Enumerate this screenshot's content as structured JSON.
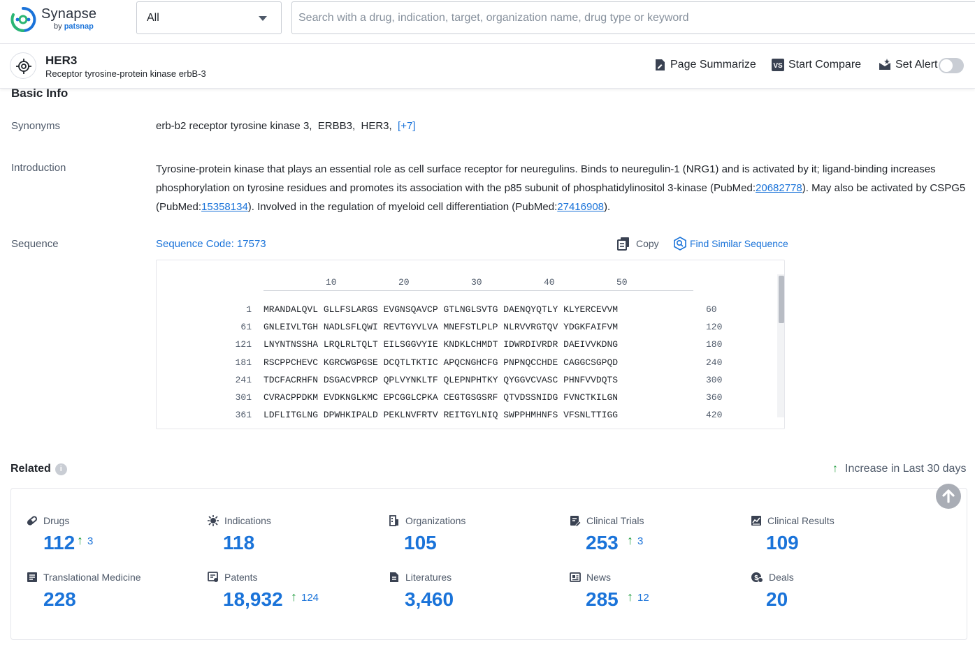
{
  "header": {
    "brand": "Synapse",
    "brand_by": "by",
    "brand_company": "patsnap",
    "search_scope": "All",
    "search_placeholder": "Search with a drug, indication, target, organization name, drug type or keyword"
  },
  "entity": {
    "name": "HER3",
    "description": "Receptor tyrosine-protein kinase erbB-3",
    "actions": {
      "summarize": "Page Summarize",
      "compare": "Start Compare",
      "alert": "Set Alert"
    },
    "alert_enabled": false
  },
  "basic_info": {
    "title": "Basic Info",
    "synonyms_label": "Synonyms",
    "synonyms": [
      "erb-b2 receptor tyrosine kinase 3,",
      "ERBB3,",
      "HER3,"
    ],
    "synonyms_more": "[+7]",
    "introduction_label": "Introduction",
    "introduction": {
      "part1": "Tyrosine-protein kinase that plays an essential role as cell surface receptor for neuregulins. Binds to neuregulin-1 (NRG1) and is activated by it; ligand-binding increases phosphorylation on tyrosine residues and promotes its association with the p85 subunit of phosphatidylinositol 3-kinase (PubMed:",
      "link1": "20682778",
      "part2": "). May also be activated by CSPG5 (PubMed:",
      "link2": "15358134",
      "part3": "). Involved in the regulation of myeloid cell differentiation (PubMed:",
      "link3": "27416908",
      "part4": ")."
    },
    "sequence_label": "Sequence",
    "sequence_code": "Sequence Code: 17573",
    "copy_label": "Copy",
    "find_similar_label": "Find Similar Sequence",
    "ruler_ticks": [
      "10",
      "20",
      "30",
      "40",
      "50"
    ],
    "sequence_lines": [
      {
        "start": "1",
        "residues": "MRANDALQVL GLLFSLARGS EVGNSQAVCP GTLNGLSVTG DAENQYQTLY KLYERCEVVM",
        "end": "60"
      },
      {
        "start": "61",
        "residues": "GNLEIVLTGH NADLSFLQWI REVTGYVLVA MNEFSTLPLP NLRVVRGTQV YDGKFAIFVM",
        "end": "120"
      },
      {
        "start": "121",
        "residues": "LNYNTNSSHA LRQLRLTQLT EILSGGVYIE KNDKLCHMDT IDWRDIVRDR DAEIVVKDNG",
        "end": "180"
      },
      {
        "start": "181",
        "residues": "RSCPPCHEVC KGRCWGPGSE DCQTLTKTIC APQCNGHCFG PNPNQCCHDE CAGGCSGPQD",
        "end": "240"
      },
      {
        "start": "241",
        "residues": "TDCFACRHFN DSGACVPRCP QPLVYNKLTF QLEPNPHTKY QYGGVCVASC PHNFVVDQTS",
        "end": "300"
      },
      {
        "start": "301",
        "residues": "CVRACPPDKM EVDKNGLKMC EPCGGLCPKA CEGTGSGSRF QTVDSSNIDG FVNCTKILGN",
        "end": "360"
      },
      {
        "start": "361",
        "residues": "LDFLITGLNG DPWHKIPALD PEKLNVFRTV REITGYLNIQ SWPPHMHNFS VFSNLTTIGG",
        "end": "420"
      }
    ]
  },
  "related": {
    "title": "Related",
    "increase_label": "Increase in Last 30 days",
    "items": [
      {
        "label": "Drugs",
        "value": "112",
        "increase": "3",
        "icon": "pill-icon"
      },
      {
        "label": "Indications",
        "value": "118",
        "increase": "",
        "icon": "virus-icon"
      },
      {
        "label": "Organizations",
        "value": "105",
        "increase": "",
        "icon": "building-icon"
      },
      {
        "label": "Clinical Trials",
        "value": "253",
        "increase": "3",
        "icon": "clipboard-icon"
      },
      {
        "label": "Clinical Results",
        "value": "109",
        "increase": "",
        "icon": "chart-doc-icon"
      },
      {
        "label": "Translational Medicine",
        "value": "228",
        "increase": "",
        "icon": "book-icon"
      },
      {
        "label": "Patents",
        "value": "18,932",
        "increase": "124",
        "icon": "patent-icon"
      },
      {
        "label": "Literatures",
        "value": "3,460",
        "increase": "",
        "icon": "document-icon"
      },
      {
        "label": "News",
        "value": "285",
        "increase": "12",
        "icon": "newspaper-icon"
      },
      {
        "label": "Deals",
        "value": "20",
        "increase": "",
        "icon": "deal-icon"
      }
    ]
  },
  "colors": {
    "accent": "#1a73d9",
    "increase": "#1e9c3c",
    "muted": "#4e5969"
  }
}
